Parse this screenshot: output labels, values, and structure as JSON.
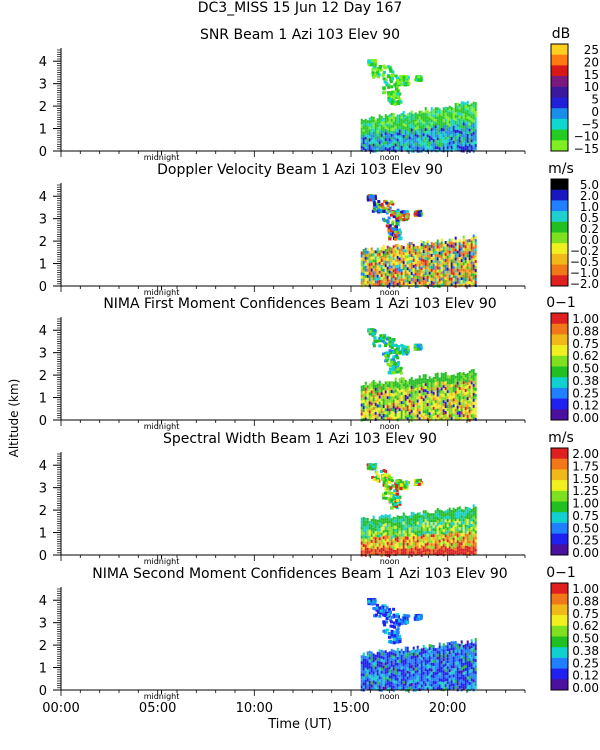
{
  "figure": {
    "title_line1": "DC3_MISS  15 Jun 12 Day 167",
    "xlabel": "Time (UT)",
    "ylabel": "Altitude (km)",
    "xticks": [
      "00:00",
      "05:00",
      "10:00",
      "15:00",
      "20:00"
    ],
    "marker_midnight": "midnight",
    "marker_noon": "noon"
  },
  "colors": {
    "snr": [
      "#80ee20",
      "#22cc22",
      "#10d8d0",
      "#1a8ee8",
      "#2020d8",
      "#3a1a9a",
      "#7a1a80",
      "#d81818",
      "#ff7a10",
      "#ffd020"
    ],
    "doppler": [
      "#e02020",
      "#f07818",
      "#f0b818",
      "#f0f020",
      "#80e020",
      "#20c020",
      "#20d0d0",
      "#2080ff",
      "#1818c0",
      "#000000"
    ],
    "confidence": [
      "#4a10a0",
      "#2020f0",
      "#2080ff",
      "#10d0d0",
      "#20c020",
      "#80e020",
      "#f0f020",
      "#f0b818",
      "#f07818",
      "#e02020"
    ]
  },
  "chart_data": [
    {
      "type": "heatmap",
      "title": "SNR Beam 1 Azi 103 Elev 90",
      "units": "dB",
      "colorbar_labels": [
        "25",
        "20",
        "15",
        "10",
        "5",
        "0",
        "−5",
        "−10",
        "−15"
      ],
      "palette": "snr",
      "style": "snr",
      "xlim": [
        0,
        24
      ],
      "ylim": [
        0,
        4.5
      ],
      "yticks": [
        0,
        1,
        2,
        3,
        4
      ],
      "data_extent_hours": [
        15.5,
        21.5
      ],
      "boundary_layer_top_km": [
        1.4,
        2.2
      ]
    },
    {
      "type": "heatmap",
      "title": "Doppler Velocity Beam 1 Azi 103 Elev 90",
      "units": "m/s",
      "colorbar_labels": [
        "5.0",
        "2.0",
        "1.0",
        "0.5",
        "0.2",
        "0.0",
        "−0.2",
        "−0.5",
        "−1.0",
        "−2.0"
      ],
      "palette": "doppler",
      "style": "doppler",
      "xlim": [
        0,
        24
      ],
      "ylim": [
        0,
        4.5
      ],
      "yticks": [
        0,
        1,
        2,
        3,
        4
      ],
      "data_extent_hours": [
        15.5,
        21.5
      ],
      "boundary_layer_top_km": [
        1.6,
        2.2
      ]
    },
    {
      "type": "heatmap",
      "title": "NIMA First Moment Confidences Beam 1 Azi 103 Elev 90",
      "units": "0−1",
      "colorbar_labels": [
        "1.00",
        "0.88",
        "0.75",
        "0.62",
        "0.50",
        "0.38",
        "0.25",
        "0.12",
        "0.00"
      ],
      "palette": "confidence",
      "style": "conf1",
      "xlim": [
        0,
        24
      ],
      "ylim": [
        0,
        4.5
      ],
      "yticks": [
        0,
        1,
        2,
        3,
        4
      ],
      "data_extent_hours": [
        15.5,
        21.5
      ],
      "boundary_layer_top_km": [
        1.6,
        2.2
      ]
    },
    {
      "type": "heatmap",
      "title": "Spectral Width Beam 1 Azi 103 Elev 90",
      "units": "m/s",
      "colorbar_labels": [
        "2.00",
        "1.75",
        "1.50",
        "1.25",
        "1.00",
        "0.75",
        "0.50",
        "0.25",
        "0.00"
      ],
      "palette": "confidence",
      "style": "width",
      "xlim": [
        0,
        24
      ],
      "ylim": [
        0,
        4.5
      ],
      "yticks": [
        0,
        1,
        2,
        3,
        4
      ],
      "data_extent_hours": [
        15.5,
        21.5
      ],
      "boundary_layer_top_km": [
        1.6,
        2.2
      ]
    },
    {
      "type": "heatmap",
      "title": "NIMA Second Moment Confidences Beam 1 Azi 103 Elev 90",
      "units": "0−1",
      "colorbar_labels": [
        "1.00",
        "0.88",
        "0.75",
        "0.62",
        "0.50",
        "0.38",
        "0.25",
        "0.12",
        "0.00"
      ],
      "palette": "confidence",
      "style": "conf2",
      "xlim": [
        0,
        24
      ],
      "ylim": [
        0,
        4.5
      ],
      "yticks": [
        0,
        1,
        2,
        3,
        4
      ],
      "data_extent_hours": [
        15.5,
        21.5
      ],
      "boundary_layer_top_km": [
        1.6,
        2.2
      ]
    }
  ]
}
